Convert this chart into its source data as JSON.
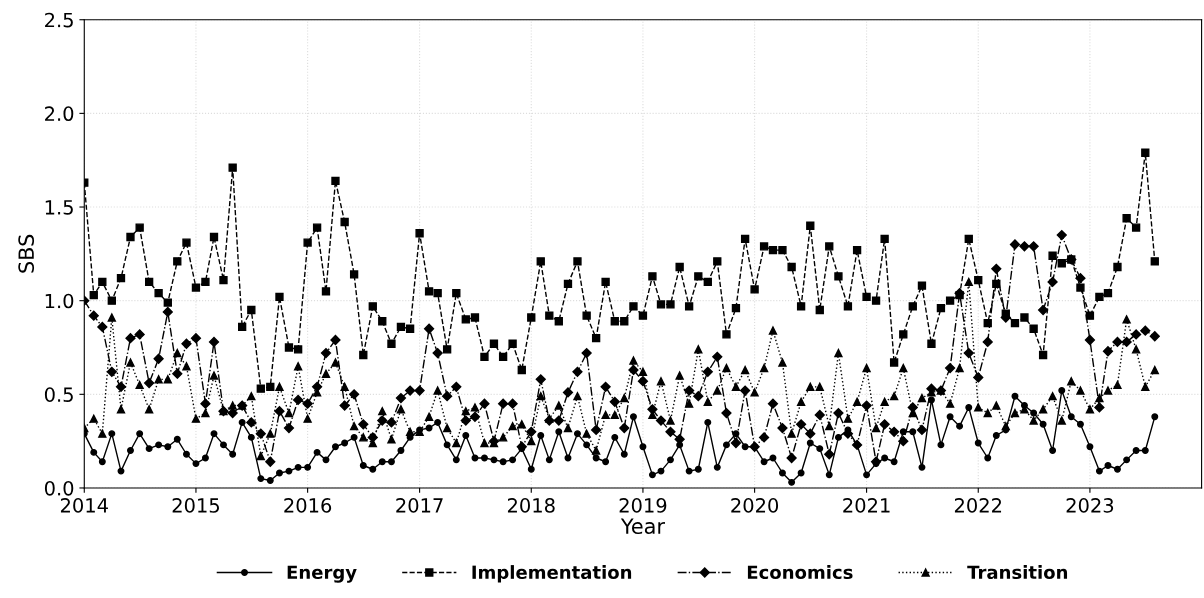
{
  "chart_data": {
    "type": "line",
    "xlabel": "Year",
    "ylabel": "SBS",
    "x": [
      "2014-01",
      "2014-02",
      "2014-03",
      "2014-04",
      "2014-05",
      "2014-06",
      "2014-07",
      "2014-08",
      "2014-09",
      "2014-10",
      "2014-11",
      "2014-12",
      "2015-01",
      "2015-02",
      "2015-03",
      "2015-04",
      "2015-05",
      "2015-06",
      "2015-07",
      "2015-08",
      "2015-09",
      "2015-10",
      "2015-11",
      "2015-12",
      "2016-01",
      "2016-02",
      "2016-03",
      "2016-04",
      "2016-05",
      "2016-06",
      "2016-07",
      "2016-08",
      "2016-09",
      "2016-10",
      "2016-11",
      "2016-12",
      "2017-01",
      "2017-02",
      "2017-03",
      "2017-04",
      "2017-05",
      "2017-06",
      "2017-07",
      "2017-08",
      "2017-09",
      "2017-10",
      "2017-11",
      "2017-12",
      "2018-01",
      "2018-02",
      "2018-03",
      "2018-04",
      "2018-05",
      "2018-06",
      "2018-07",
      "2018-08",
      "2018-09",
      "2018-10",
      "2018-11",
      "2018-12",
      "2019-01",
      "2019-02",
      "2019-03",
      "2019-04",
      "2019-05",
      "2019-06",
      "2019-07",
      "2019-08",
      "2019-09",
      "2019-10",
      "2019-11",
      "2019-12",
      "2020-01",
      "2020-02",
      "2020-03",
      "2020-04",
      "2020-05",
      "2020-06",
      "2020-07",
      "2020-08",
      "2020-09",
      "2020-10",
      "2020-11",
      "2020-12",
      "2021-01",
      "2021-02",
      "2021-03",
      "2021-04",
      "2021-05",
      "2021-06",
      "2021-07",
      "2021-08",
      "2021-09",
      "2021-10",
      "2021-11",
      "2021-12",
      "2022-01",
      "2022-02",
      "2022-03",
      "2022-04",
      "2022-05",
      "2022-06",
      "2022-07",
      "2022-08",
      "2022-09",
      "2022-10",
      "2022-11",
      "2022-12",
      "2023-01",
      "2023-02",
      "2023-03",
      "2023-04",
      "2023-05",
      "2023-06",
      "2023-07",
      "2023-08"
    ],
    "series": [
      {
        "name": "Energy",
        "color": "#000000",
        "marker": "circle",
        "line_style": "solid",
        "values": [
          0.29,
          0.19,
          0.14,
          0.29,
          0.09,
          0.2,
          0.29,
          0.21,
          0.23,
          0.22,
          0.26,
          0.18,
          0.13,
          0.16,
          0.29,
          0.23,
          0.18,
          0.35,
          0.27,
          0.05,
          0.04,
          0.08,
          0.09,
          0.11,
          0.11,
          0.19,
          0.15,
          0.22,
          0.24,
          0.27,
          0.12,
          0.1,
          0.14,
          0.14,
          0.2,
          0.27,
          0.31,
          0.32,
          0.35,
          0.23,
          0.15,
          0.28,
          0.16,
          0.16,
          0.15,
          0.14,
          0.15,
          0.21,
          0.1,
          0.28,
          0.15,
          0.3,
          0.16,
          0.29,
          0.23,
          0.16,
          0.14,
          0.27,
          0.18,
          0.38,
          0.22,
          0.07,
          0.09,
          0.15,
          0.23,
          0.09,
          0.1,
          0.35,
          0.11,
          0.23,
          0.29,
          0.22,
          0.22,
          0.14,
          0.16,
          0.08,
          0.03,
          0.08,
          0.24,
          0.21,
          0.07,
          0.27,
          0.31,
          0.23,
          0.07,
          0.13,
          0.16,
          0.14,
          0.3,
          0.3,
          0.11,
          0.47,
          0.23,
          0.38,
          0.33,
          0.43,
          0.24,
          0.16,
          0.28,
          0.31,
          0.49,
          0.44,
          0.4,
          0.34,
          0.2,
          0.52,
          0.38,
          0.34,
          0.22,
          0.09,
          0.12,
          0.1,
          0.15,
          0.2,
          0.2,
          0.38
        ]
      },
      {
        "name": "Implementation",
        "color": "#000000",
        "marker": "square",
        "line_style": "dashed",
        "values": [
          1.63,
          1.03,
          1.1,
          1.0,
          1.12,
          1.34,
          1.39,
          1.1,
          1.04,
          0.99,
          1.21,
          1.31,
          1.07,
          1.1,
          1.34,
          1.11,
          1.71,
          0.86,
          0.95,
          0.53,
          0.54,
          1.02,
          0.75,
          0.74,
          1.31,
          1.39,
          1.05,
          1.64,
          1.42,
          1.14,
          0.71,
          0.97,
          0.89,
          0.77,
          0.86,
          0.85,
          1.36,
          1.05,
          1.04,
          0.74,
          1.04,
          0.9,
          0.91,
          0.7,
          0.77,
          0.7,
          0.77,
          0.63,
          0.91,
          1.21,
          0.92,
          0.89,
          1.09,
          1.21,
          0.92,
          0.8,
          1.1,
          0.89,
          0.89,
          0.97,
          0.92,
          1.13,
          0.98,
          0.98,
          1.18,
          0.97,
          1.13,
          1.1,
          1.21,
          0.82,
          0.96,
          1.33,
          1.06,
          1.29,
          1.27,
          1.27,
          1.18,
          0.97,
          1.4,
          0.95,
          1.29,
          1.13,
          0.97,
          1.27,
          1.02,
          1.0,
          1.33,
          0.67,
          0.82,
          0.97,
          1.08,
          0.77,
          0.96,
          1.0,
          1.03,
          1.33,
          1.11,
          0.88,
          1.09,
          0.93,
          0.88,
          0.91,
          0.85,
          0.71,
          1.24,
          1.2,
          1.22,
          1.07,
          0.92,
          1.02,
          1.04,
          1.18,
          1.44,
          1.39,
          1.79,
          1.21
        ]
      },
      {
        "name": "Economics",
        "color": "#000000",
        "marker": "diamond",
        "line_style": "dashdot",
        "values": [
          1.0,
          0.92,
          0.86,
          0.62,
          0.54,
          0.8,
          0.82,
          0.56,
          0.69,
          0.94,
          0.61,
          0.77,
          0.8,
          0.45,
          0.78,
          0.41,
          0.4,
          0.44,
          0.35,
          0.29,
          0.14,
          0.41,
          0.32,
          0.47,
          0.45,
          0.54,
          0.72,
          0.79,
          0.44,
          0.5,
          0.34,
          0.27,
          0.36,
          0.35,
          0.48,
          0.52,
          0.52,
          0.85,
          0.72,
          0.49,
          0.54,
          0.36,
          0.38,
          0.45,
          0.25,
          0.45,
          0.45,
          0.22,
          0.3,
          0.58,
          0.36,
          0.36,
          0.51,
          0.62,
          0.72,
          0.31,
          0.54,
          0.46,
          0.32,
          0.63,
          0.57,
          0.42,
          0.36,
          0.3,
          0.26,
          0.52,
          0.49,
          0.62,
          0.7,
          0.4,
          0.24,
          0.52,
          0.22,
          0.27,
          0.45,
          0.32,
          0.16,
          0.34,
          0.29,
          0.39,
          0.18,
          0.4,
          0.29,
          0.23,
          0.44,
          0.14,
          0.34,
          0.3,
          0.25,
          0.43,
          0.31,
          0.53,
          0.52,
          0.64,
          1.04,
          0.72,
          0.59,
          0.78,
          1.17,
          0.91,
          1.3,
          1.29,
          1.29,
          0.95,
          1.1,
          1.35,
          1.22,
          1.12,
          0.79,
          0.43,
          0.73,
          0.78,
          0.78,
          0.82,
          0.84,
          0.81
        ]
      },
      {
        "name": "Transition",
        "color": "#000000",
        "marker": "triangle",
        "line_style": "dotted",
        "values": [
          0.32,
          0.37,
          0.29,
          0.91,
          0.42,
          0.67,
          0.55,
          0.42,
          0.58,
          0.58,
          0.72,
          0.65,
          0.37,
          0.4,
          0.6,
          0.41,
          0.44,
          0.44,
          0.49,
          0.17,
          0.29,
          0.54,
          0.4,
          0.65,
          0.37,
          0.51,
          0.61,
          0.67,
          0.54,
          0.33,
          0.27,
          0.24,
          0.41,
          0.26,
          0.42,
          0.3,
          0.3,
          0.38,
          0.52,
          0.32,
          0.24,
          0.41,
          0.43,
          0.24,
          0.24,
          0.27,
          0.33,
          0.34,
          0.25,
          0.49,
          0.37,
          0.44,
          0.32,
          0.49,
          0.29,
          0.2,
          0.39,
          0.39,
          0.48,
          0.68,
          0.62,
          0.39,
          0.57,
          0.36,
          0.6,
          0.45,
          0.74,
          0.46,
          0.52,
          0.64,
          0.54,
          0.63,
          0.51,
          0.64,
          0.84,
          0.67,
          0.29,
          0.46,
          0.54,
          0.54,
          0.33,
          0.72,
          0.37,
          0.46,
          0.64,
          0.32,
          0.46,
          0.49,
          0.64,
          0.4,
          0.48,
          0.51,
          0.52,
          0.45,
          0.64,
          1.1,
          0.43,
          0.4,
          0.44,
          0.33,
          0.4,
          0.42,
          0.36,
          0.42,
          0.49,
          0.36,
          0.57,
          0.52,
          0.42,
          0.48,
          0.52,
          0.55,
          0.9,
          0.74,
          0.54,
          0.63
        ]
      }
    ],
    "xlim": [
      "2014-01-01",
      "2024-01-01"
    ],
    "xticks": [
      {
        "value": "2014-01-01",
        "label": "2014"
      },
      {
        "value": "2015-01-01",
        "label": "2015"
      },
      {
        "value": "2016-01-01",
        "label": "2016"
      },
      {
        "value": "2017-01-01",
        "label": "2017"
      },
      {
        "value": "2018-01-01",
        "label": "2018"
      },
      {
        "value": "2019-01-01",
        "label": "2019"
      },
      {
        "value": "2020-01-01",
        "label": "2020"
      },
      {
        "value": "2021-01-01",
        "label": "2021"
      },
      {
        "value": "2022-01-01",
        "label": "2022"
      },
      {
        "value": "2023-01-01",
        "label": "2023"
      }
    ],
    "ylim": [
      0,
      2.5
    ],
    "yticks": [
      {
        "value": 0,
        "label": "0.0"
      },
      {
        "value": 0.5,
        "label": "0.5"
      },
      {
        "value": 1.0,
        "label": "1.0"
      },
      {
        "value": 1.5,
        "label": "1.5"
      },
      {
        "value": 2.0,
        "label": "2.0"
      },
      {
        "value": 2.5,
        "label": "2.5"
      }
    ],
    "grid": true,
    "legend": "bottom"
  }
}
